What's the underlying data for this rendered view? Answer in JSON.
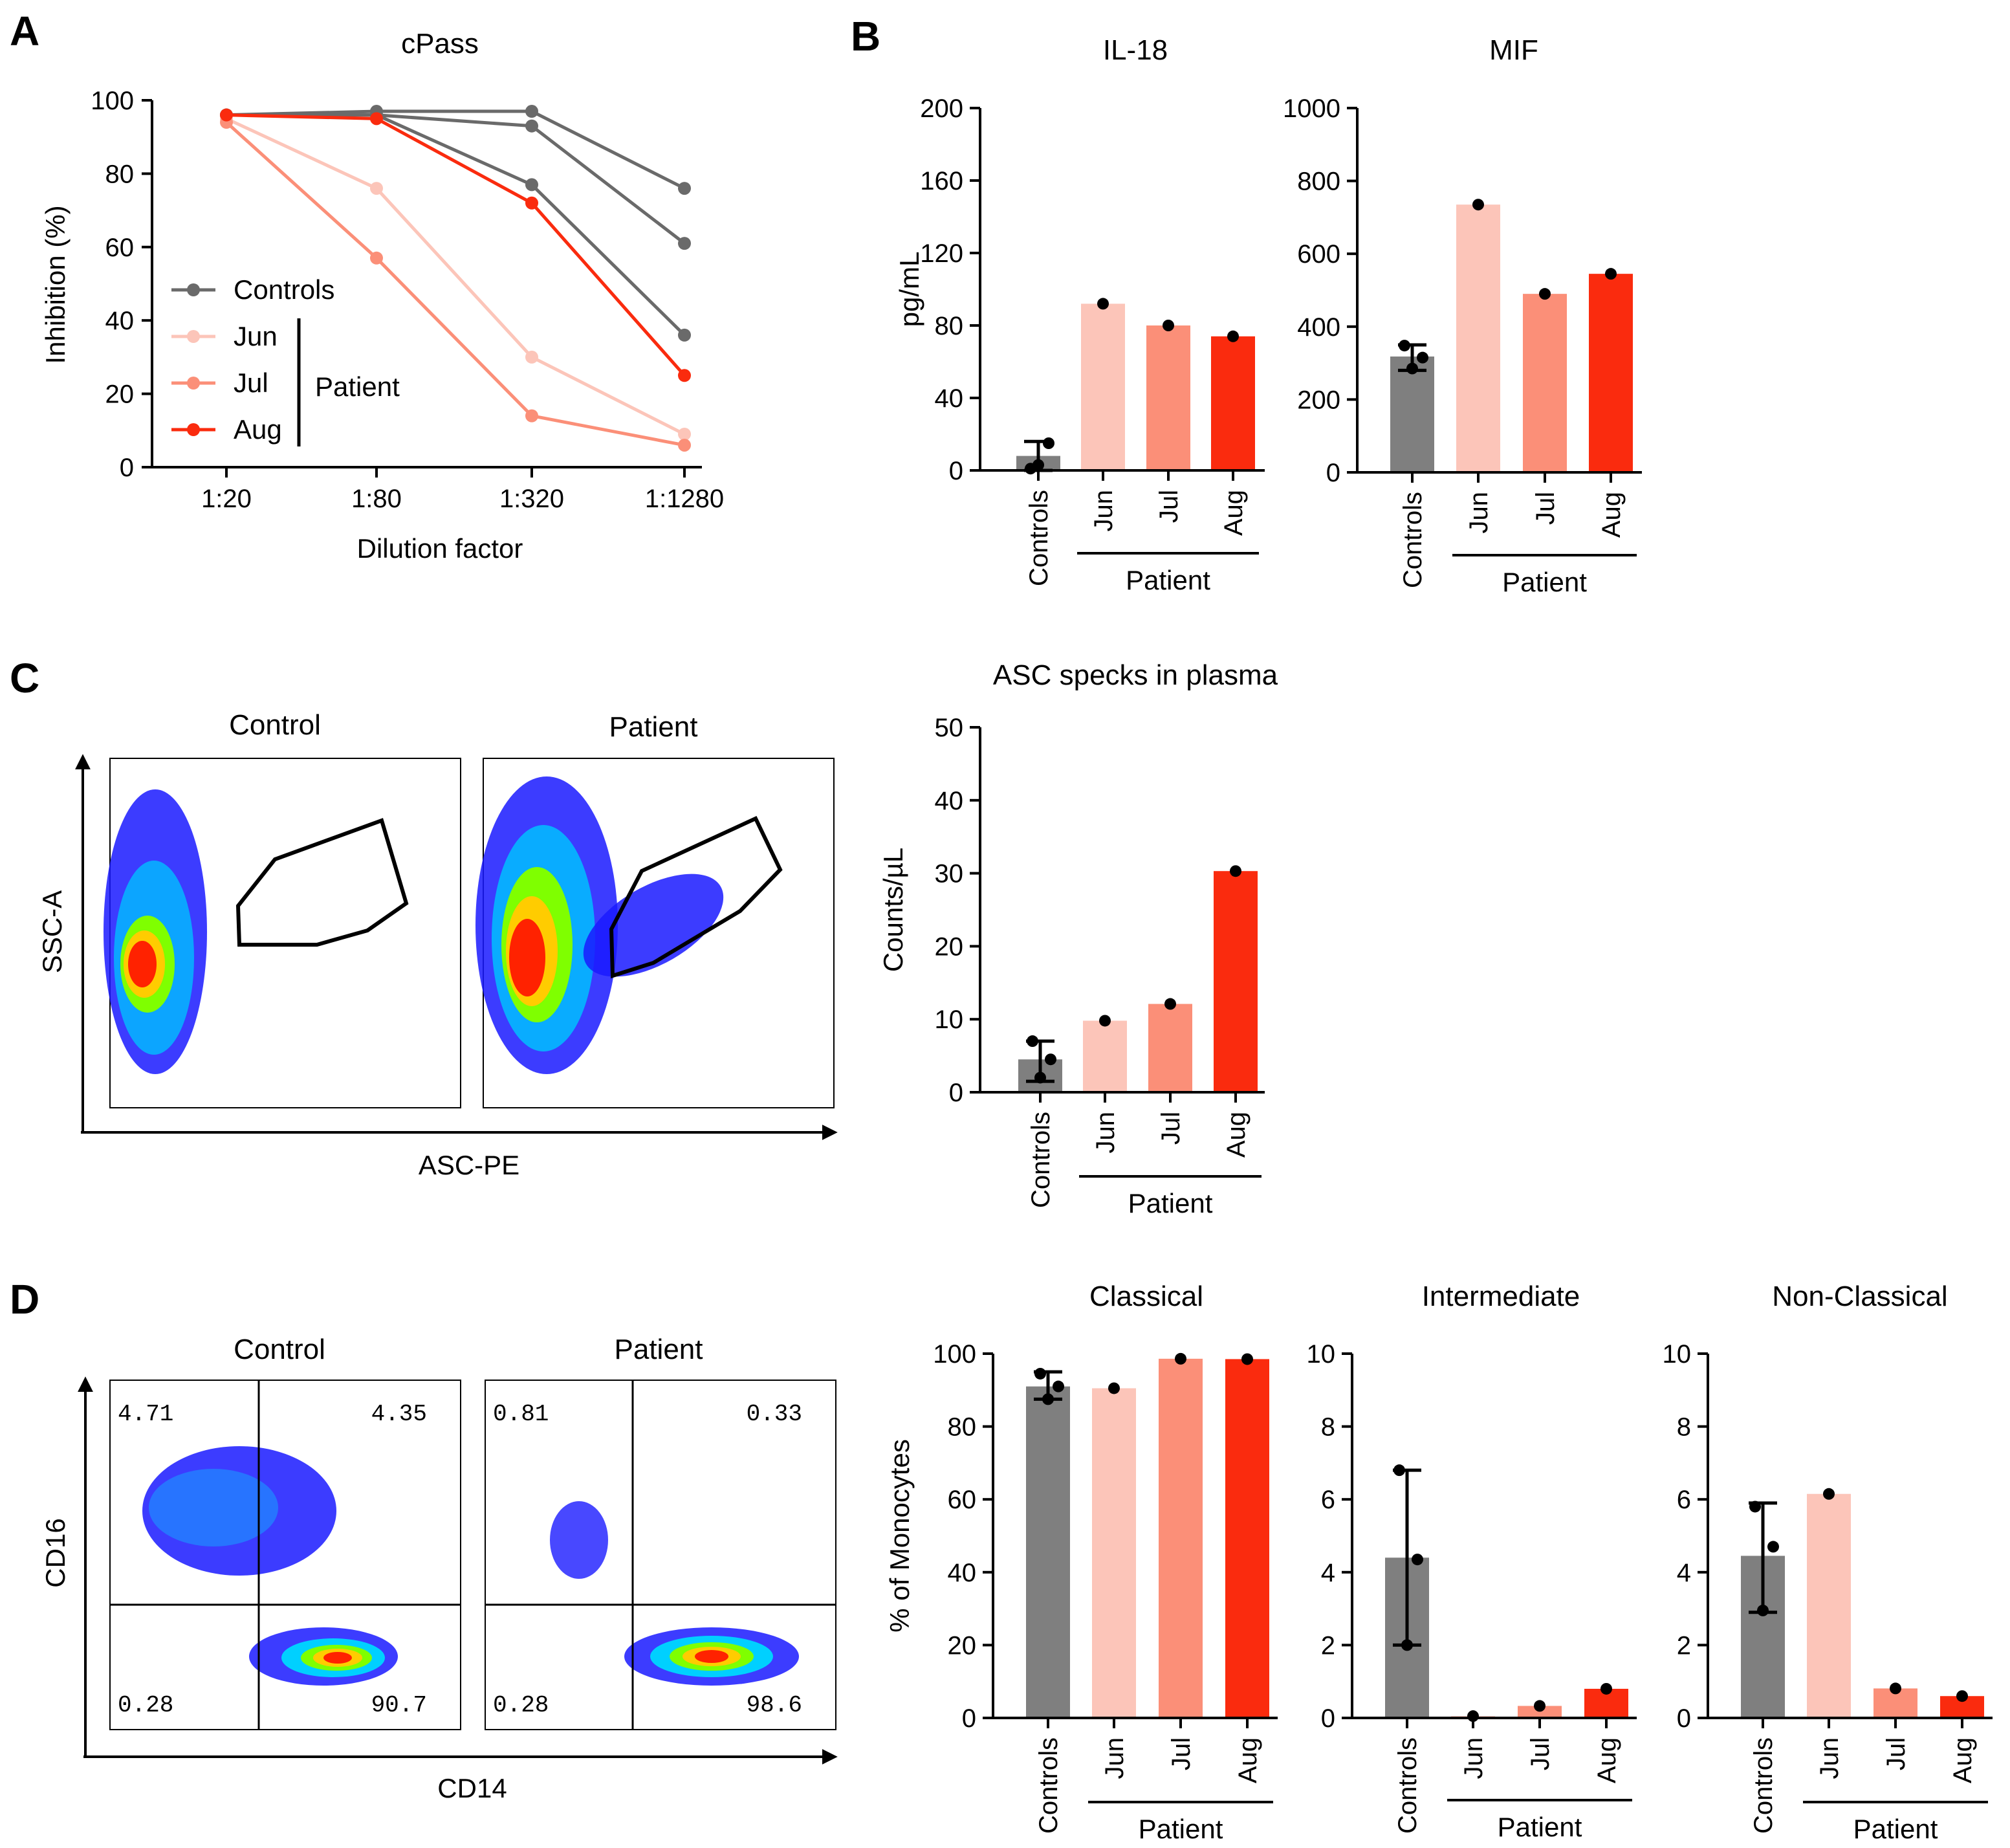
{
  "panels": {
    "A": "A",
    "B": "B",
    "C": "C",
    "D": "D"
  },
  "colors": {
    "controls": "#7f7f7f",
    "controls_line": "#6a6a6a",
    "jun": "#fcc5b9",
    "jul": "#fb8f78",
    "aug": "#fa2b0e",
    "point": "#000000"
  },
  "bar_common": {
    "categories": [
      "Controls",
      "Jun",
      "Jul",
      "Aug"
    ],
    "group_label": "Patient"
  },
  "chart_data": [
    {
      "id": "cpass",
      "type": "line",
      "title": "cPass",
      "xlabel": "Dilution factor",
      "ylabel": "Inhibition (%)",
      "categories": [
        "1:20",
        "1:80",
        "1:320",
        "1:1280"
      ],
      "ylim": [
        0,
        100
      ],
      "yticks": [
        0,
        20,
        40,
        60,
        80,
        100
      ],
      "series": [
        {
          "name": "Controls",
          "group": "controls",
          "values": [
            96,
            97,
            97,
            76
          ]
        },
        {
          "name": "Controls",
          "group": "controls",
          "values": [
            96,
            96,
            93,
            61
          ]
        },
        {
          "name": "Controls",
          "group": "controls",
          "values": [
            96,
            96,
            77,
            36
          ]
        },
        {
          "name": "Jun",
          "group": "jun",
          "values": [
            95,
            76,
            30,
            9
          ]
        },
        {
          "name": "Jul",
          "group": "jul",
          "values": [
            94,
            57,
            14,
            6
          ]
        },
        {
          "name": "Aug",
          "group": "aug",
          "values": [
            96,
            95,
            72,
            25
          ]
        }
      ],
      "legend": [
        {
          "label": "Controls",
          "group": "controls"
        },
        {
          "label": "Jun",
          "group": "jun"
        },
        {
          "label": "Jul",
          "group": "jul"
        },
        {
          "label": "Aug",
          "group": "aug"
        }
      ],
      "legend_bracket_label": "Patient"
    },
    {
      "id": "il18",
      "type": "bar",
      "title": "IL-18",
      "ylabel": "pg/mL",
      "ylim": [
        0,
        200
      ],
      "yticks": [
        0,
        40,
        80,
        120,
        160,
        200
      ],
      "values": [
        8,
        92,
        80,
        74
      ],
      "error": [
        [
          0,
          16
        ],
        null,
        null,
        null
      ],
      "points": [
        [
          1,
          15,
          3
        ],
        [
          92
        ],
        [
          80
        ],
        [
          74
        ]
      ]
    },
    {
      "id": "mif",
      "type": "bar",
      "title": "MIF",
      "ylabel": "",
      "ylim": [
        0,
        1000
      ],
      "yticks": [
        0,
        200,
        400,
        600,
        800,
        1000
      ],
      "values": [
        318,
        735,
        490,
        545
      ],
      "error": [
        [
          280,
          350
        ],
        null,
        null,
        null
      ],
      "points": [
        [
          348,
          315,
          285
        ],
        [
          735
        ],
        [
          490
        ],
        [
          545
        ]
      ]
    },
    {
      "id": "asc",
      "type": "bar",
      "title": "ASC specks in plasma",
      "ylabel": "Counts/µL",
      "ylim": [
        0,
        50
      ],
      "yticks": [
        0,
        10,
        20,
        30,
        40,
        50
      ],
      "values": [
        4.5,
        9.8,
        12.1,
        30.3
      ],
      "error": [
        [
          1.5,
          7
        ],
        null,
        null,
        null
      ],
      "points": [
        [
          7,
          4.5,
          2
        ],
        [
          9.8
        ],
        [
          12.1
        ],
        [
          30.3
        ]
      ]
    },
    {
      "id": "classical",
      "type": "bar",
      "title": "Classical",
      "ylabel": "% of Monocytes",
      "ylim": [
        0,
        100
      ],
      "yticks": [
        0,
        20,
        40,
        60,
        80,
        100
      ],
      "values": [
        91,
        90.5,
        98.6,
        98.5
      ],
      "error": [
        [
          87.5,
          95
        ],
        null,
        null,
        null
      ],
      "points": [
        [
          94.5,
          91,
          87.5
        ],
        [
          90.5
        ],
        [
          98.6
        ],
        [
          98.5
        ]
      ]
    },
    {
      "id": "intermediate",
      "type": "bar",
      "title": "Intermediate",
      "ylabel": "",
      "ylim": [
        0,
        10
      ],
      "yticks": [
        0,
        2,
        4,
        6,
        8,
        10
      ],
      "values": [
        4.4,
        0.05,
        0.33,
        0.8
      ],
      "error": [
        [
          2,
          6.8
        ],
        null,
        null,
        null
      ],
      "points": [
        [
          6.8,
          4.35,
          2
        ],
        [
          0.05
        ],
        [
          0.33
        ],
        [
          0.8
        ]
      ]
    },
    {
      "id": "nonclassical",
      "type": "bar",
      "title": "Non-Classical",
      "ylabel": "",
      "ylim": [
        0,
        10
      ],
      "yticks": [
        0,
        2,
        4,
        6,
        8,
        10
      ],
      "values": [
        4.45,
        6.15,
        0.81,
        0.6
      ],
      "error": [
        [
          2.9,
          5.9
        ],
        null,
        null,
        null
      ],
      "points": [
        [
          5.8,
          4.7,
          2.95
        ],
        [
          6.15
        ],
        [
          0.81
        ],
        [
          0.6
        ]
      ]
    }
  ],
  "flow": {
    "asc": {
      "x_axis": "ASC-PE",
      "y_axis": "SSC-A",
      "plots": [
        {
          "title": "Control"
        },
        {
          "title": "Patient"
        }
      ]
    },
    "mono": {
      "x_axis": "CD14",
      "y_axis": "CD16",
      "plots": [
        {
          "title": "Control",
          "q_tl": "4.71",
          "q_tr": "4.35",
          "q_bl": "0.28",
          "q_br": "90.7"
        },
        {
          "title": "Patient",
          "q_tl": "0.81",
          "q_tr": "0.33",
          "q_bl": "0.28",
          "q_br": "98.6"
        }
      ]
    }
  }
}
